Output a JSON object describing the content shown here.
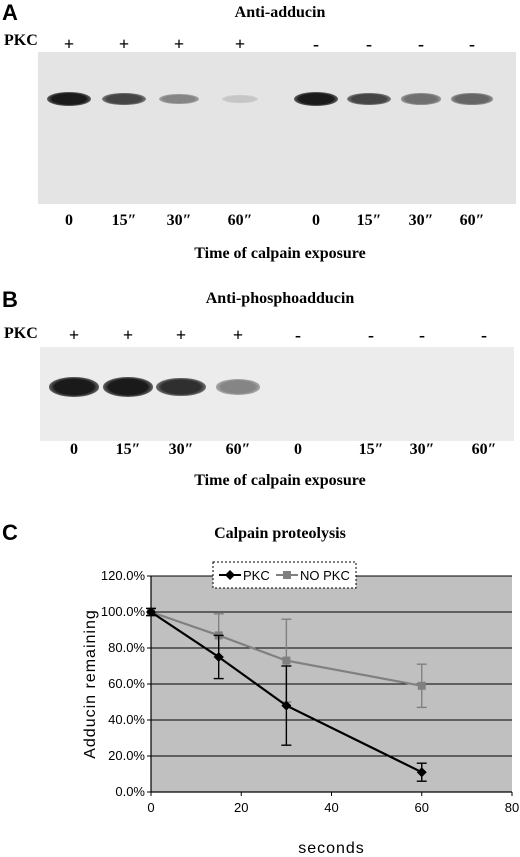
{
  "panelA": {
    "letter": "A",
    "title": "Anti-adducin",
    "pkc_label": "PKC",
    "signs": [
      "+",
      "+",
      "+",
      "+",
      "-",
      "-",
      "-",
      "-"
    ],
    "lanes": [
      "0",
      "15″",
      "30″",
      "60″",
      "0",
      "15″",
      "30″",
      "60″"
    ],
    "xlabel": "Time of calpain exposure",
    "band_intensity": [
      0.95,
      0.75,
      0.45,
      0.15,
      0.95,
      0.75,
      0.55,
      0.6
    ]
  },
  "panelB": {
    "letter": "B",
    "title": "Anti-phosphoadducin",
    "pkc_label": "PKC",
    "signs": [
      "+",
      "+",
      "+",
      "+",
      "-",
      "-",
      "-",
      "-"
    ],
    "lanes": [
      "0",
      "15″",
      "30″",
      "60″",
      "0",
      "15″",
      "30″",
      "60″"
    ],
    "xlabel": "Time of calpain exposure",
    "band_intensity": [
      0.95,
      0.95,
      0.85,
      0.45,
      0,
      0,
      0,
      0
    ]
  },
  "panelC": {
    "letter": "C",
    "title": "Calpain proteolysis"
  },
  "chart_data": {
    "type": "line",
    "title": "Calpain proteolysis",
    "xlabel": "seconds",
    "ylabel": "Adducin remaining",
    "xlim": [
      0,
      80
    ],
    "ylim": [
      0,
      1.2
    ],
    "xticks": [
      "0",
      "20",
      "40",
      "60",
      "80"
    ],
    "yticks": [
      "0.0%",
      "20.0%",
      "40.0%",
      "60.0%",
      "80.0%",
      "100.0%",
      "120.0%"
    ],
    "grid": true,
    "legend": "top",
    "x": [
      0,
      15,
      30,
      60
    ],
    "series": [
      {
        "name": "PKC",
        "values": [
          1.0,
          0.75,
          0.48,
          0.11
        ],
        "err": [
          0.02,
          0.12,
          0.22,
          0.05
        ],
        "color": "#000000",
        "marker": "diamond"
      },
      {
        "name": "NO PKC",
        "values": [
          1.0,
          0.87,
          0.73,
          0.59
        ],
        "err": [
          0.02,
          0.12,
          0.23,
          0.12
        ],
        "color": "#808080",
        "marker": "square"
      }
    ]
  }
}
